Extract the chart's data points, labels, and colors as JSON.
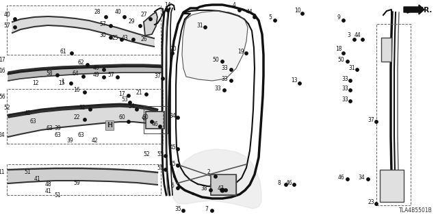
{
  "bg_color": "#ffffff",
  "diagram_code": "TLA4B5501B",
  "fig_width": 6.4,
  "fig_height": 3.2,
  "dpi": 100,
  "image_b64": ""
}
